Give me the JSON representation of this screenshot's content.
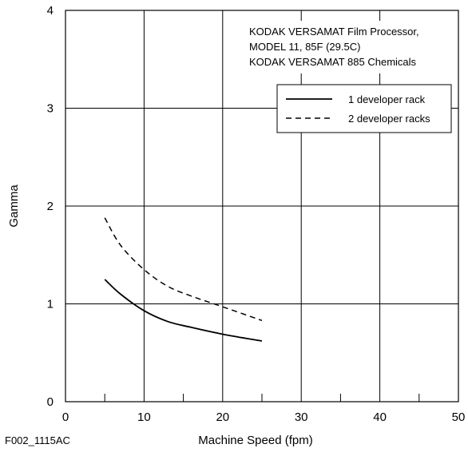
{
  "figure_id": "F002_1115AC",
  "chart_data": {
    "type": "line",
    "title": "",
    "xlabel": "Machine Speed (fpm)",
    "ylabel": "Gamma",
    "xlim": [
      0,
      50
    ],
    "ylim": [
      0,
      4
    ],
    "x_ticks": [
      0,
      10,
      20,
      30,
      40,
      50
    ],
    "y_ticks": [
      0,
      1,
      2,
      3,
      4
    ],
    "x_tick_labels": [
      "0",
      "10",
      "20",
      "30",
      "40",
      "50"
    ],
    "y_tick_labels": [
      "0",
      "1",
      "2",
      "3",
      "4"
    ],
    "annotation_lines": [
      "KODAK VERSAMAT Film Processor,",
      "MODEL 11, 85F (29.5C)",
      "KODAK VERSAMAT 885 Chemicals"
    ],
    "legend_position": "top-right",
    "series": [
      {
        "name": "1 developer rack",
        "style": "solid",
        "x": [
          5,
          7,
          10,
          13,
          16,
          20,
          25
        ],
        "y": [
          1.25,
          1.1,
          0.93,
          0.82,
          0.76,
          0.69,
          0.62
        ]
      },
      {
        "name": "2 developer racks",
        "style": "dashed",
        "x": [
          5,
          7,
          10,
          13,
          16,
          20,
          25
        ],
        "y": [
          1.88,
          1.6,
          1.35,
          1.18,
          1.08,
          0.97,
          0.83
        ]
      }
    ]
  }
}
